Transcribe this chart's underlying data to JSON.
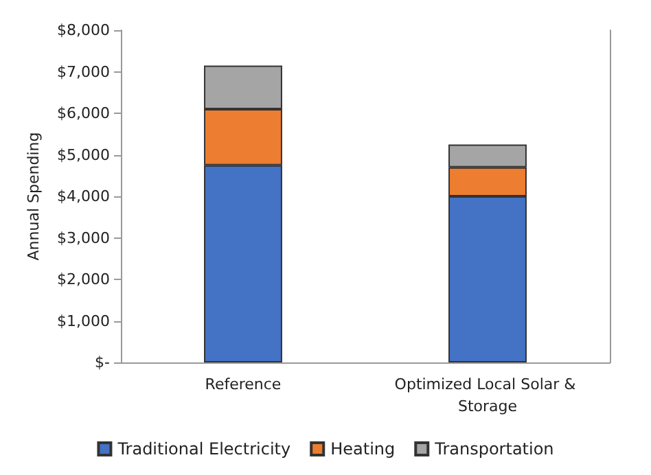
{
  "chart_data": {
    "type": "bar",
    "stacked": true,
    "ylabel": "Annual Spending",
    "categories": [
      "Reference",
      "Optimized Local Solar & Storage"
    ],
    "series": [
      {
        "name": "Traditional Electricity",
        "color": "#4472c4",
        "values": [
          4750,
          4000
        ]
      },
      {
        "name": "Heating",
        "color": "#ed7d31",
        "values": [
          1350,
          700
        ]
      },
      {
        "name": "Transportation",
        "color": "#a5a5a5",
        "values": [
          1050,
          550
        ]
      }
    ],
    "ylim": [
      0,
      8000
    ],
    "yticks": [
      {
        "value": 0,
        "label": "$-"
      },
      {
        "value": 1000,
        "label": "$1,000"
      },
      {
        "value": 2000,
        "label": "$2,000"
      },
      {
        "value": 3000,
        "label": "$3,000"
      },
      {
        "value": 4000,
        "label": "$4,000"
      },
      {
        "value": 5000,
        "label": "$5,000"
      },
      {
        "value": 6000,
        "label": "$6,000"
      },
      {
        "value": 7000,
        "label": "$7,000"
      },
      {
        "value": 8000,
        "label": "$8,000"
      }
    ],
    "grid": false,
    "legend": "bottom"
  }
}
